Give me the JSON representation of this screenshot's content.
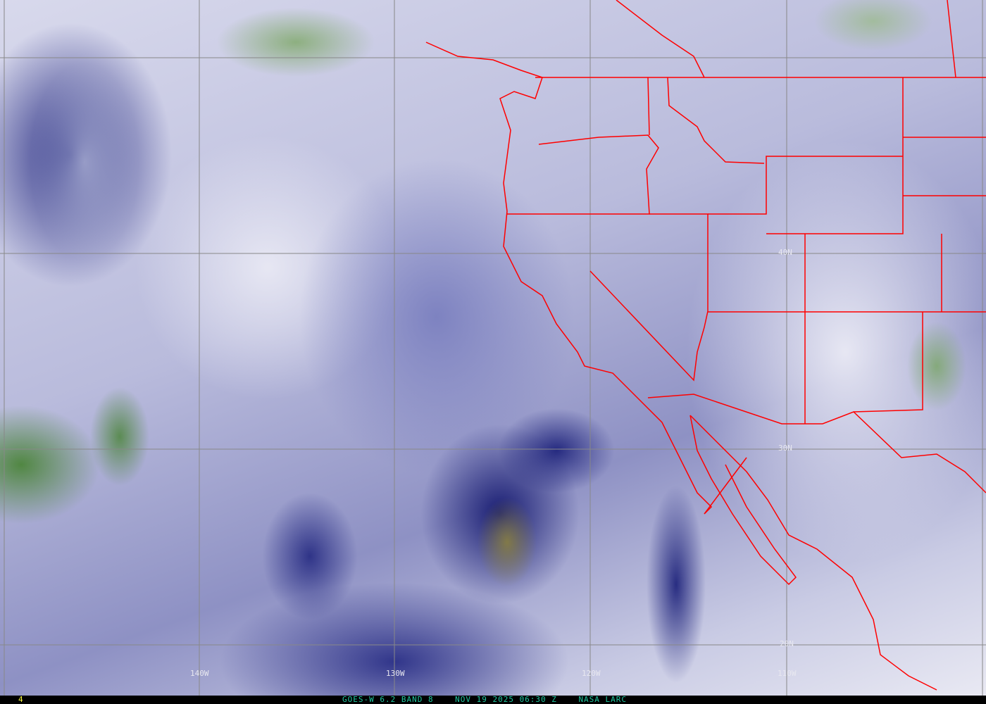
{
  "grid": {
    "latitude_labels": [
      "40N",
      "30N",
      "20N"
    ],
    "longitude_labels": [
      "140W",
      "130W",
      "120W",
      "110W"
    ],
    "color": "#808080"
  },
  "borders_color": "#ff0000",
  "footer": {
    "frame_number": "4",
    "satellite": "GOES-W 6.2 BAND 8",
    "datetime": "NOV 19 2025 06:30 Z",
    "source": "NASA LARC"
  }
}
